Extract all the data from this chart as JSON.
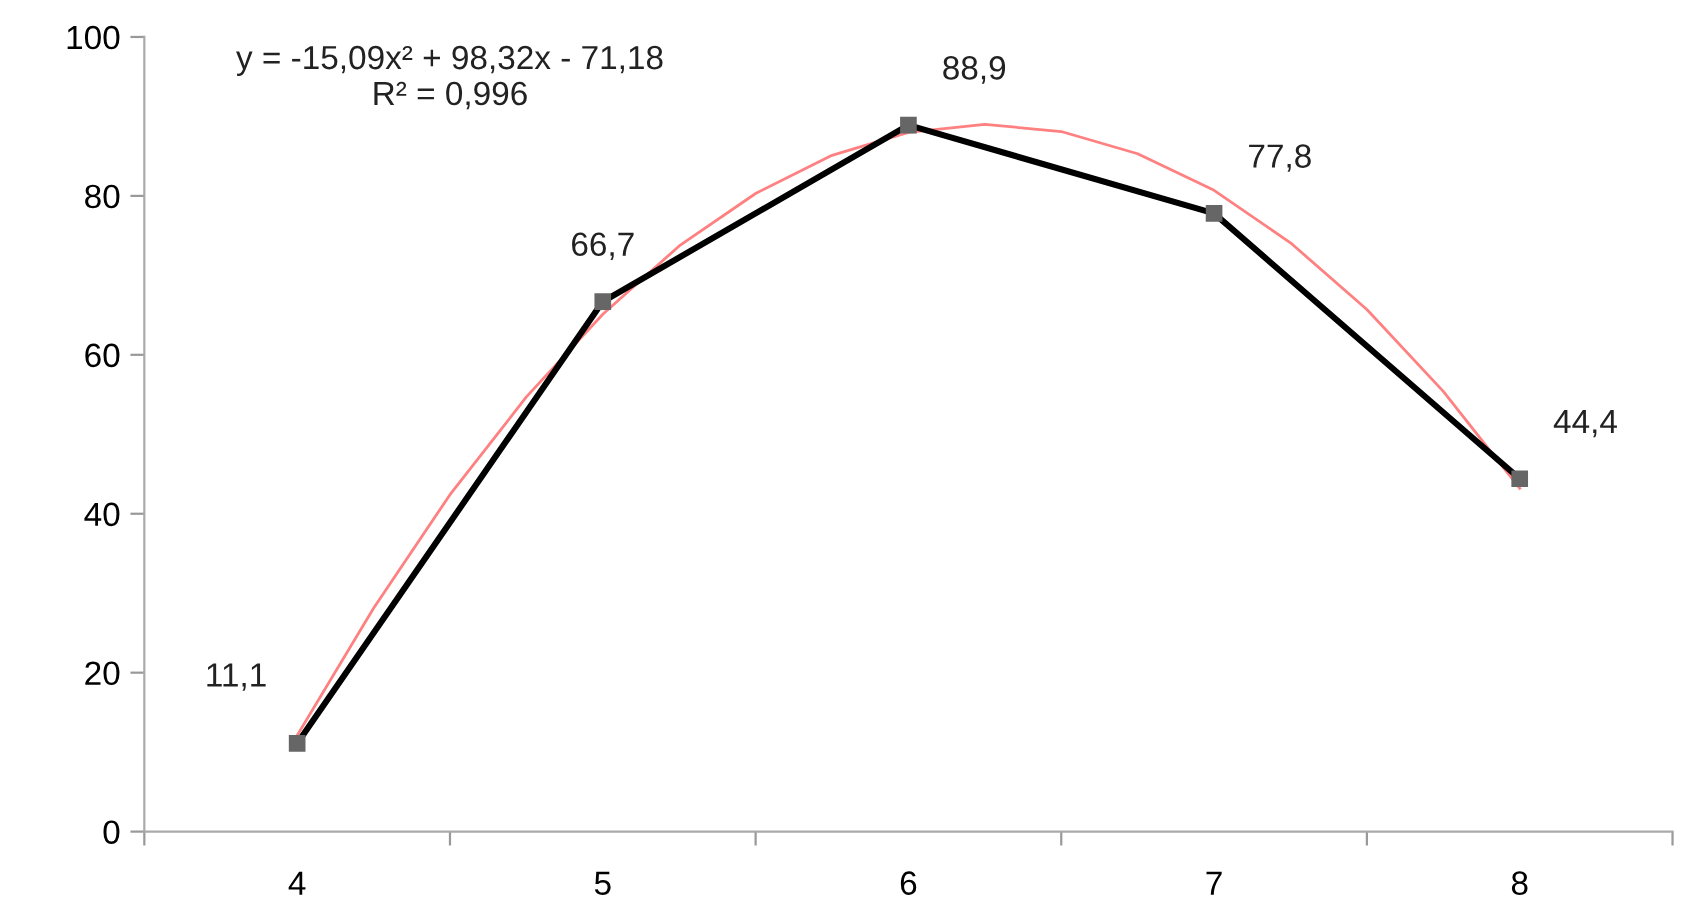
{
  "chart_data": {
    "type": "line",
    "x": [
      4,
      5,
      6,
      7,
      8
    ],
    "xlim": [
      3.5,
      8.5
    ],
    "xticks": [
      {
        "value": 3.5,
        "label": null
      },
      4,
      {
        "value": 4.5,
        "label": null
      },
      5,
      {
        "value": 5.5,
        "label": null
      },
      6,
      {
        "value": 6.5,
        "label": null
      },
      7,
      {
        "value": 7.5,
        "label": null
      },
      8,
      {
        "value": 8.5,
        "label": null
      }
    ],
    "ylim": [
      0,
      100
    ],
    "yticks": [
      0,
      20,
      40,
      60,
      80,
      100
    ],
    "grid": false,
    "legend": false,
    "series": [
      {
        "color": "#000000",
        "values": [
          11.1,
          66.7,
          88.9,
          77.8,
          44.4
        ],
        "marker": "square",
        "data_labels": true,
        "value_labels": [
          "11,1",
          "66,7",
          "88,9",
          "77,8",
          "44,4"
        ]
      },
      {
        "type": "line",
        "color": "#ff8080",
        "marker": "none",
        "x": [
          4,
          4.25,
          4.5,
          4.75,
          5,
          5.25,
          5.5,
          5.75,
          6,
          6.25,
          6.5,
          6.75,
          7,
          7.25,
          7.5,
          7.75,
          8
        ],
        "values": [
          12.1,
          28.1,
          42.4,
          54.7,
          65.1,
          73.7,
          80.3,
          85.1,
          88.0,
          89.0,
          88.1,
          85.3,
          80.7,
          74.1,
          65.7,
          55.4,
          43.2
        ]
      }
    ],
    "annotations": [
      {
        "text": "y = -15,09x² + 98,32x - 71,18\nR² = 0,996"
      }
    ]
  }
}
